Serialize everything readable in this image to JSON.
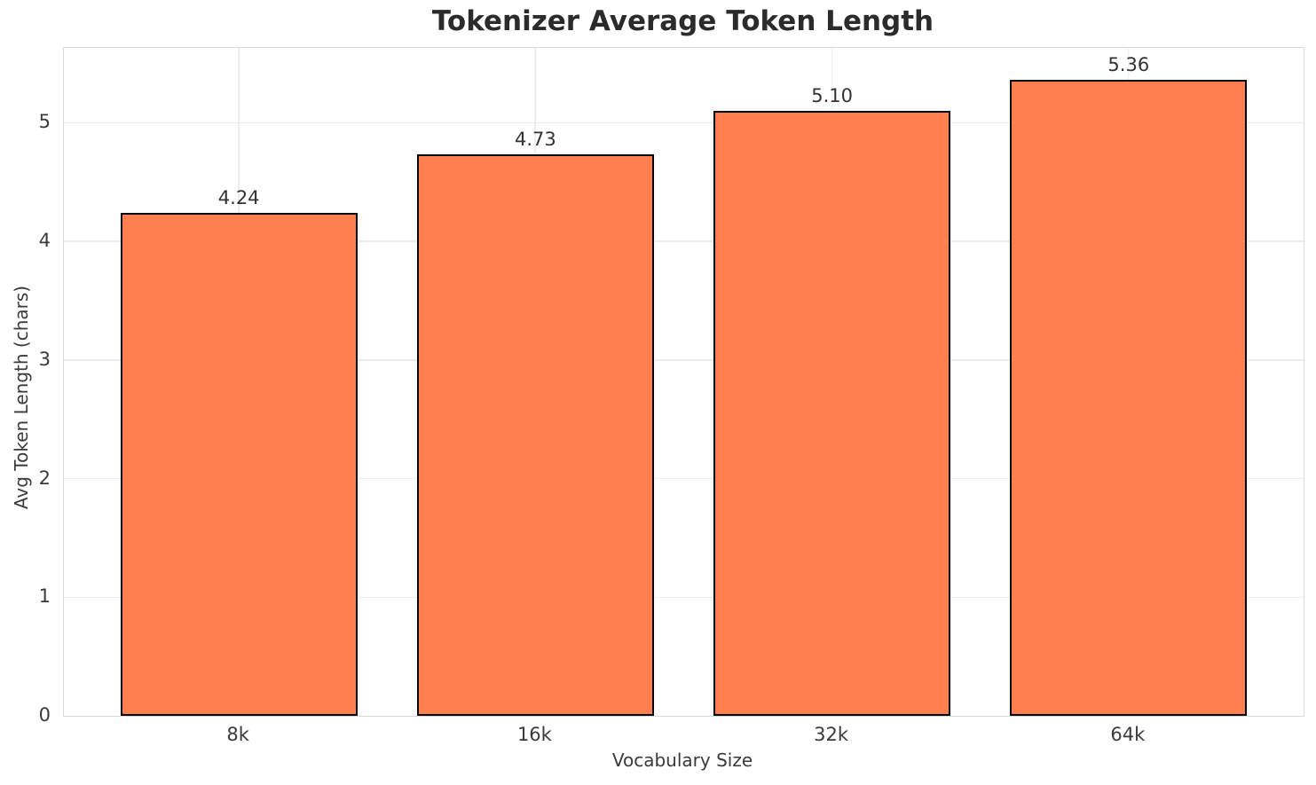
{
  "chart_data": {
    "type": "bar",
    "title": "Tokenizer Average Token Length",
    "xlabel": "Vocabulary Size",
    "ylabel": "Avg Token Length (chars)",
    "categories": [
      "8k",
      "16k",
      "32k",
      "64k"
    ],
    "values": [
      4.24,
      4.73,
      5.1,
      5.36
    ],
    "bar_labels": [
      "4.24",
      "4.73",
      "5.10",
      "5.36"
    ],
    "yticks": [
      0,
      1,
      2,
      3,
      4,
      5
    ],
    "ytick_labels": [
      "0",
      "1",
      "2",
      "3",
      "4",
      "5"
    ],
    "ylim": [
      0,
      5.63
    ],
    "grid": "both",
    "legend": false,
    "bar_color": "#FF7F50",
    "bar_edge_color": "#000000",
    "grid_color": "#ececec",
    "spine_color": "#d8d8d8",
    "title_color": "#2b2b2b",
    "text_color": "#3a3a3a"
  }
}
